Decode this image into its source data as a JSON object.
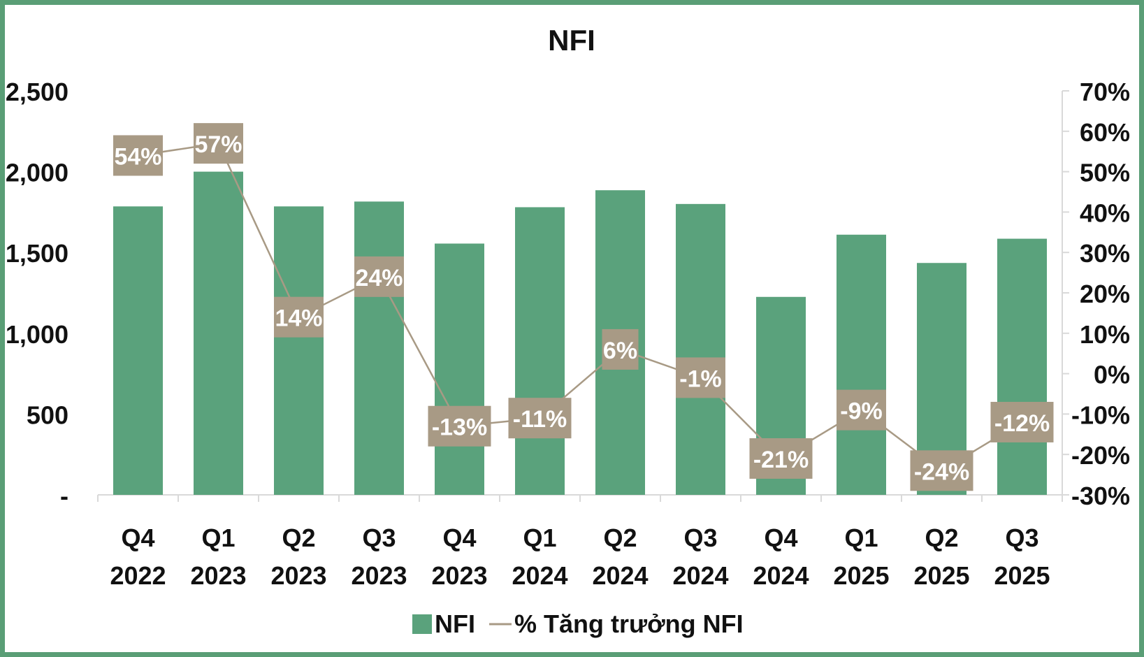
{
  "chart_data": {
    "type": "bar",
    "title": "NFI",
    "categories": [
      [
        "Q4",
        "2022"
      ],
      [
        "Q1",
        "2023"
      ],
      [
        "Q2",
        "2023"
      ],
      [
        "Q3",
        "2023"
      ],
      [
        "Q4",
        "2023"
      ],
      [
        "Q1",
        "2024"
      ],
      [
        "Q2",
        "2024"
      ],
      [
        "Q3",
        "2024"
      ],
      [
        "Q4",
        "2024"
      ],
      [
        "Q1",
        "2025"
      ],
      [
        "Q2",
        "2025"
      ],
      [
        "Q3",
        "2025"
      ]
    ],
    "series": [
      {
        "name": "NFI",
        "type": "bar",
        "axis": "left",
        "color": "#5aa27c",
        "values": [
          1785,
          2000,
          1785,
          1815,
          1555,
          1780,
          1885,
          1800,
          1225,
          1610,
          1435,
          1585
        ]
      },
      {
        "name": "% Tăng trưởng NFI",
        "type": "line",
        "axis": "right",
        "color": "#a89a85",
        "values": [
          54,
          57,
          14,
          24,
          -13,
          -11,
          6,
          -1,
          -21,
          -9,
          -24,
          -12
        ],
        "labels": [
          "54%",
          "57%",
          "14%",
          "24%",
          "-13%",
          "-11%",
          "6%",
          "-1%",
          "-21%",
          "-9%",
          "-24%",
          "-12%"
        ]
      }
    ],
    "y_left": {
      "min": 0,
      "max": 2500,
      "ticks": [
        0,
        500,
        1000,
        1500,
        2000,
        2500
      ],
      "tick_labels": [
        "-",
        "500",
        "1,000",
        "1,500",
        "2,000",
        "2,500"
      ]
    },
    "y_right": {
      "min": -30,
      "max": 70,
      "ticks": [
        -30,
        -20,
        -10,
        0,
        10,
        20,
        30,
        40,
        50,
        60,
        70
      ],
      "tick_labels": [
        "-30%",
        "-20%",
        "-10%",
        "0%",
        "10%",
        "20%",
        "30%",
        "40%",
        "50%",
        "60%",
        "70%"
      ]
    },
    "grid": false,
    "legend": "bottom"
  },
  "colors": {
    "frame": "#5a9e76",
    "bar": "#5aa27c",
    "line": "#a89a85",
    "label_box": "#a89a85",
    "axis": "#d9d9d9",
    "text": "#111111"
  }
}
